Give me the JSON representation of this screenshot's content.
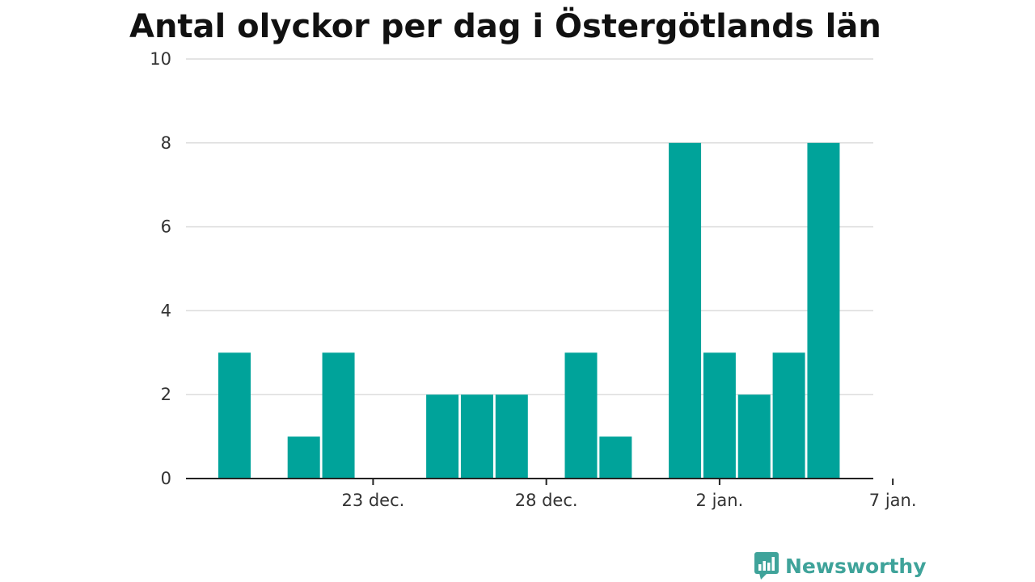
{
  "title": "Antal olyckor per dag i Östergötlands län",
  "brand": {
    "name": "Newsworthy",
    "icon": "newsworthy-logo-icon"
  },
  "colors": {
    "bar": "#00a39a",
    "grid": "#dcdcdc",
    "axis": "#222222",
    "text": "#333333",
    "brand": "#3fa39a"
  },
  "chart_data": {
    "type": "bar",
    "title": "Antal olyckor per dag i Östergötlands län",
    "xlabel": "",
    "ylabel": "",
    "ylim": [
      0,
      10
    ],
    "yticks": [
      0,
      2,
      4,
      6,
      8,
      10
    ],
    "grid": true,
    "x_ticks": [
      "23 dec.",
      "28 dec.",
      "2 jan.",
      "7 jan."
    ],
    "categories": [
      "2023-12-19",
      "2023-12-20",
      "2023-12-21",
      "2023-12-22",
      "2023-12-23",
      "2023-12-24",
      "2023-12-25",
      "2023-12-26",
      "2023-12-27",
      "2023-12-28",
      "2023-12-29",
      "2023-12-30",
      "2023-12-31",
      "2024-01-01",
      "2024-01-02",
      "2024-01-03",
      "2024-01-04",
      "2024-01-05",
      "2024-01-06"
    ],
    "values": [
      3,
      0,
      1,
      3,
      0,
      0,
      2,
      2,
      2,
      0,
      3,
      1,
      0,
      8,
      3,
      2,
      3,
      8,
      0
    ]
  }
}
